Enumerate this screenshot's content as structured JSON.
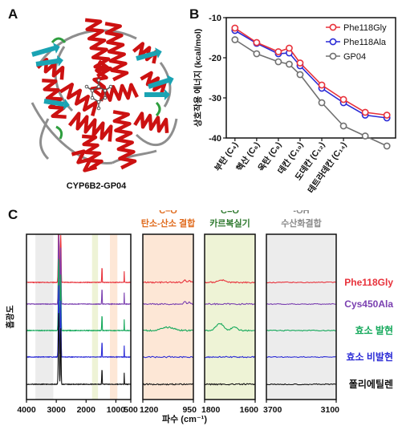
{
  "panels": {
    "a": {
      "letter": "A",
      "caption": "CYP6B2-GP04"
    },
    "b": {
      "letter": "B"
    },
    "c": {
      "letter": "C"
    }
  },
  "protein_colors": {
    "helix": "#cc1111",
    "sheet": "#1aa3b3",
    "coil": "#8e8e8e",
    "turn": "#2e9e3e",
    "ligand": "#555555"
  },
  "chart_data": [
    {
      "type": "line",
      "categories": [
        "부탄 (C₄)",
        "헥산 (C₆)",
        "옥탄 (C₈)",
        "데칸 (C₁₀)",
        "도데칸 (C₁₂)",
        "테트라데칸 (C₁₄)"
      ],
      "ylabel": "상호작용 에너지 (kcal/mol)",
      "ylim": [
        -40,
        -10
      ],
      "yticks": [
        -10,
        -20,
        -30,
        -40
      ],
      "grid": false,
      "legend_position": "top-right",
      "series": [
        {
          "name": "Phe118Gly",
          "color": "#e8323b",
          "x": [
            4,
            6,
            8,
            9,
            10,
            12,
            14,
            16,
            18
          ],
          "values": [
            -12.6,
            -16.2,
            -18.5,
            -17.6,
            -21.3,
            -26.8,
            -30.4,
            -33.6,
            -34.3
          ]
        },
        {
          "name": "Phe118Ala",
          "color": "#2b2bd6",
          "x": [
            4,
            6,
            8,
            9,
            10,
            12,
            14,
            16,
            18
          ],
          "values": [
            -13.2,
            -16.4,
            -19.0,
            -18.8,
            -22.0,
            -27.6,
            -31.2,
            -34.3,
            -35.0
          ]
        },
        {
          "name": "GP04",
          "color": "#707070",
          "x": [
            4,
            6,
            8,
            9,
            10,
            12,
            14,
            16,
            18
          ],
          "values": [
            -15.5,
            -19.0,
            -21.0,
            -21.6,
            -24.2,
            -31.2,
            -37.0,
            -39.5,
            -42.0
          ]
        }
      ]
    },
    {
      "type": "line",
      "xlabel": "파수 (cm⁻¹)",
      "ylabel": "흡광도",
      "grid": false,
      "sub_panels": [
        {
          "xlim": [
            4000,
            500
          ],
          "xticks": [
            4000,
            3000,
            2000,
            1000,
            500
          ]
        },
        {
          "xlim": [
            1200,
            950
          ],
          "xticks": [
            1200,
            950
          ],
          "band_label": "C–O",
          "band_name": "탄소-산소 결합",
          "band_color": "#fde7d6",
          "label_color": "#e06a1c"
        },
        {
          "xlim": [
            1800,
            1600
          ],
          "xticks": [
            1800,
            1600
          ],
          "band_label": "C=O",
          "band_name": "카르복실기",
          "band_color": "#eef3d6",
          "label_color": "#2f7a2f"
        },
        {
          "xlim": [
            3700,
            3100
          ],
          "xticks": [
            3700,
            3100
          ],
          "band_label": "-OH",
          "band_name": "수산화결합",
          "band_color": "#ececec",
          "label_color": "#8a8a8a"
        }
      ],
      "series": [
        {
          "name": "Phe118Gly",
          "color": "#e8323b"
        },
        {
          "name": "Cys450Ala",
          "color": "#7a3fb0"
        },
        {
          "name": "효소 발현",
          "color": "#13a85a"
        },
        {
          "name": "효소 비발현",
          "color": "#2b2bd6"
        },
        {
          "name": "폴리에틸렌",
          "color": "#111111"
        }
      ]
    }
  ]
}
